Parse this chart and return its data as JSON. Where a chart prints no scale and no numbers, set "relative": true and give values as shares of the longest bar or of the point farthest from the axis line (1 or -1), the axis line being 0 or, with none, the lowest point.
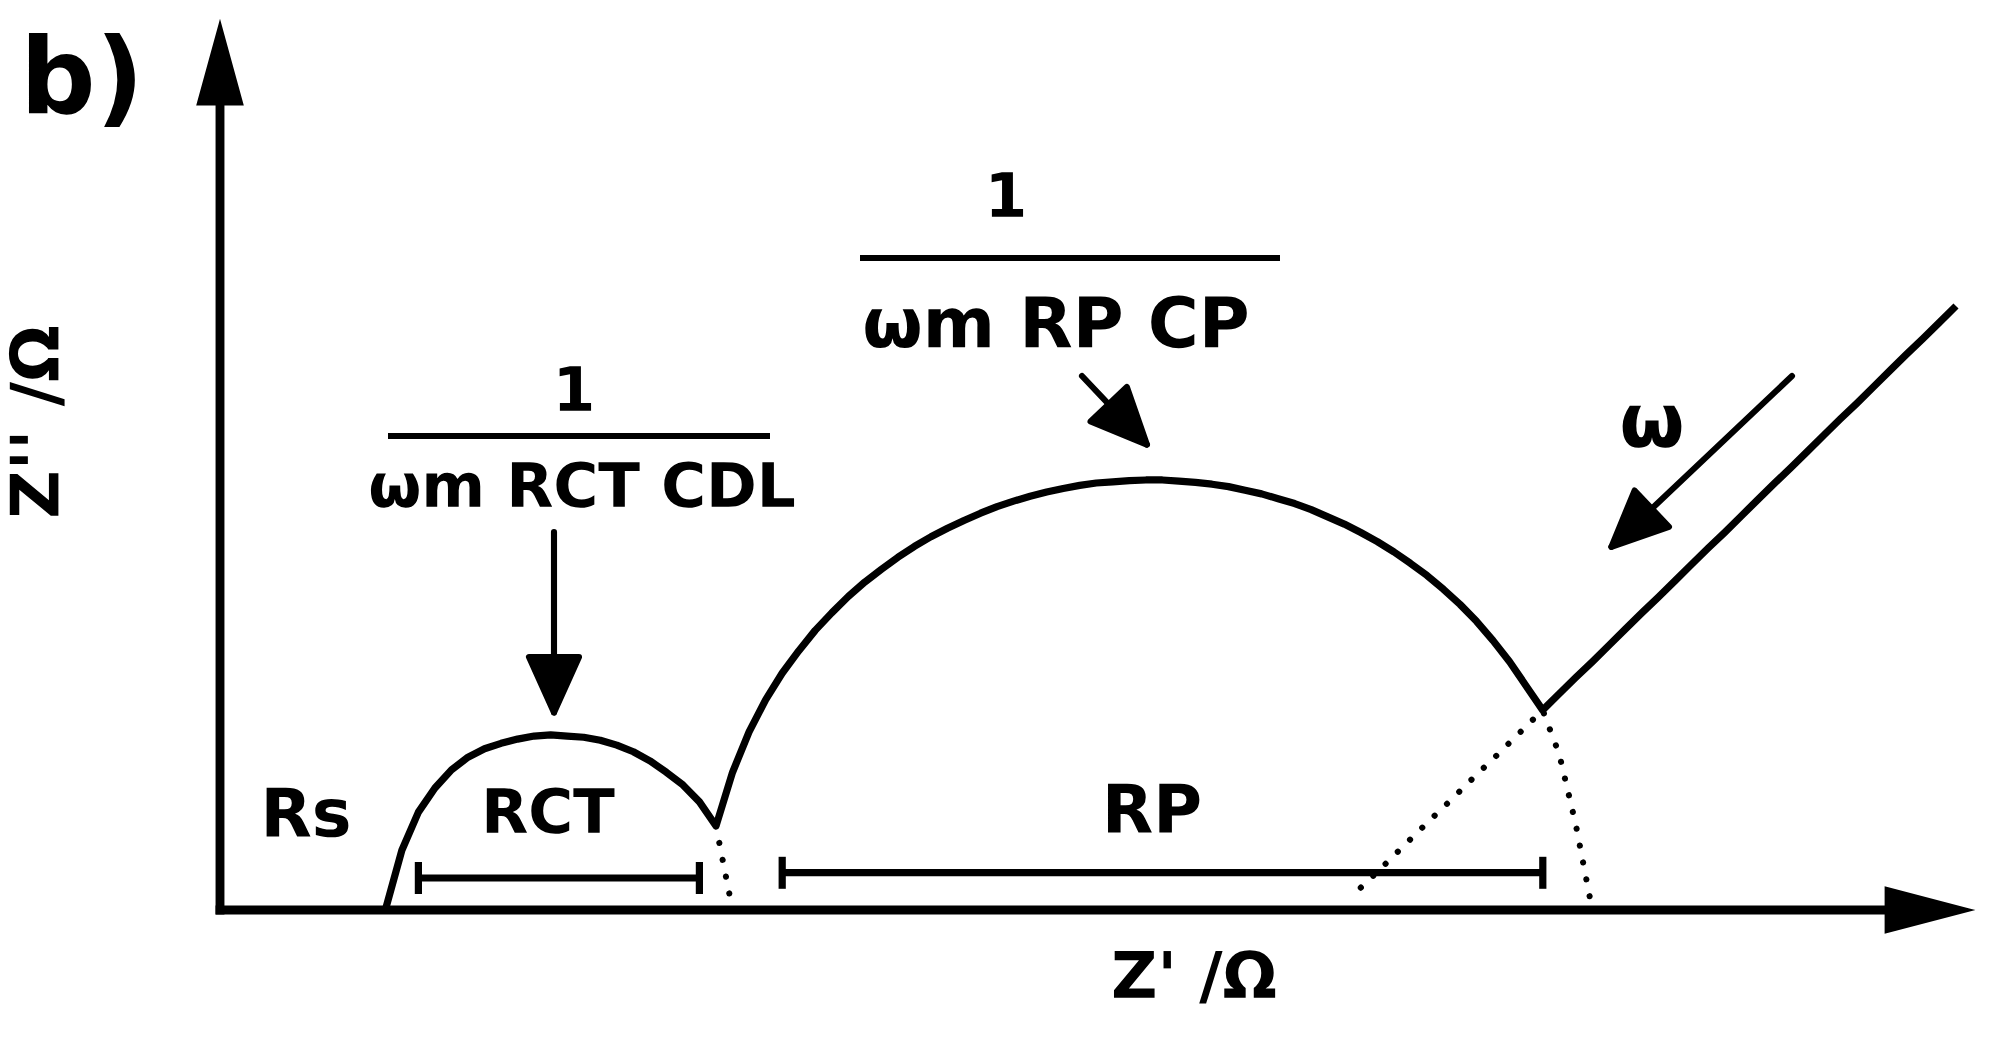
{
  "chart_data": {
    "type": "line",
    "relative": true,
    "xlabel": "Z' /Ω",
    "ylabel": "Z'' /Ω",
    "categories": [
      null,
      null,
      null,
      null,
      null,
      null,
      null,
      null,
      null,
      null,
      null,
      null,
      null,
      null,
      null,
      null,
      null,
      null,
      null,
      null,
      null,
      null,
      null,
      null,
      null,
      null,
      null,
      null,
      null,
      null,
      null,
      null,
      null,
      null,
      null,
      null,
      null,
      null,
      null,
      null,
      null,
      null,
      null,
      null,
      null,
      null,
      null,
      null,
      null,
      null,
      null,
      null,
      null,
      null,
      null,
      null,
      null,
      null,
      null,
      null,
      null,
      null,
      null,
      null,
      null,
      null,
      null,
      null,
      null,
      null,
      null,
      null,
      null,
      null,
      null,
      null,
      null,
      null,
      null,
      null,
      null,
      null,
      null,
      null,
      null,
      null,
      null,
      null,
      null,
      null,
      null,
      null,
      null,
      null,
      null,
      null,
      null,
      null,
      null,
      null,
      null,
      null,
      null,
      null,
      null,
      null
    ],
    "series": [
      {
        "color": "#000000",
        "line_style": "solid",
        "values": [
          null,
          null,
          null,
          null,
          null,
          null,
          null,
          null,
          null,
          null,
          0,
          0.099,
          0.162,
          0.202,
          0.232,
          0.253,
          0.267,
          0.276,
          0.283,
          0.288,
          0.29,
          0.288,
          0.286,
          0.281,
          0.273,
          0.262,
          0.247,
          0.228,
          0.207,
          0.179,
          0.139,
          0.228,
          0.295,
          0.348,
          0.392,
          0.429,
          0.463,
          0.492,
          0.519,
          0.543,
          0.564,
          0.584,
          0.602,
          0.618,
          0.632,
          0.645,
          0.657,
          0.668,
          0.677,
          0.685,
          0.692,
          0.698,
          0.703,
          0.707,
          0.709,
          0.711,
          0.712,
          0.712,
          0.71,
          0.708,
          0.705,
          0.701,
          0.695,
          0.689,
          0.681,
          0.673,
          0.663,
          0.651,
          0.639,
          0.625,
          0.61,
          0.593,
          0.574,
          0.554,
          0.531,
          0.506,
          0.478,
          0.446,
          0.411,
          0.371,
          0.331,
          0.358,
          0.385,
          0.411,
          0.438,
          0.465,
          0.492,
          0.518,
          0.545,
          0.572,
          0.599,
          0.625,
          0.652,
          0.679,
          0.706,
          0.732,
          0.759,
          0.786,
          0.813,
          0.839,
          0.866,
          0.893,
          0.92,
          0.946,
          0.973,
          1
        ]
      },
      {
        "color": "#000000",
        "line_style": "dotted",
        "values": [
          null,
          null,
          null,
          null,
          null,
          null,
          null,
          null,
          null,
          null,
          null,
          null,
          null,
          null,
          null,
          null,
          null,
          null,
          null,
          null,
          null,
          null,
          null,
          null,
          null,
          null,
          null,
          null,
          null,
          null,
          0.139,
          0,
          null,
          null,
          null,
          null,
          null,
          null,
          null,
          null,
          null,
          null,
          null,
          null,
          null,
          null,
          null,
          null,
          null,
          null,
          null,
          null,
          null,
          null,
          null,
          null,
          null,
          null,
          null,
          null,
          null,
          null,
          null,
          null,
          null,
          null,
          null,
          null,
          null,
          0.037,
          0.063,
          0.09,
          0.117,
          0.144,
          0.17,
          0.197,
          0.224,
          0.25,
          0.277,
          0.304,
          0.331,
          0.258,
          0.142,
          0,
          null,
          null,
          null,
          null,
          null,
          null,
          null,
          null,
          null,
          null,
          null,
          null,
          null,
          null,
          null,
          null,
          null,
          null,
          null,
          null,
          null,
          null
        ]
      },
      {
        "color": "#000000",
        "line_style": "solid",
        "values": [
          null,
          null,
          null,
          null,
          null,
          null,
          null,
          null,
          null,
          null,
          null,
          null,
          0.053,
          0.053,
          0.053,
          0.053,
          0.053,
          0.053,
          0.053,
          0.053,
          0.053,
          0.053,
          0.053,
          0.053,
          0.053,
          0.053,
          0.053,
          0.053,
          0.053,
          0.053,
          null,
          null,
          null,
          null,
          0.062,
          0.062,
          0.062,
          0.062,
          0.062,
          0.062,
          0.062,
          0.062,
          0.062,
          0.062,
          0.062,
          0.062,
          0.062,
          0.062,
          0.062,
          0.062,
          0.062,
          0.062,
          0.062,
          0.062,
          0.062,
          0.062,
          0.062,
          0.062,
          0.062,
          0.062,
          0.062,
          0.062,
          0.062,
          0.062,
          0.062,
          0.062,
          0.062,
          0.062,
          0.062,
          0.062,
          0.062,
          0.062,
          0.062,
          0.062,
          0.062,
          0.062,
          0.062,
          0.062,
          0.062,
          0.062,
          0.062,
          null,
          null,
          null,
          null,
          null,
          null,
          null,
          null,
          null,
          null,
          null,
          null,
          null,
          null,
          null,
          null,
          null,
          null,
          null,
          null,
          null,
          null,
          null,
          null,
          null
        ]
      }
    ],
    "annotations": [
      "b)",
      "Rs",
      "RCT",
      "RP",
      "1",
      "ωm RCT CDL",
      "1",
      "ωm RP CP",
      "ω"
    ]
  }
}
